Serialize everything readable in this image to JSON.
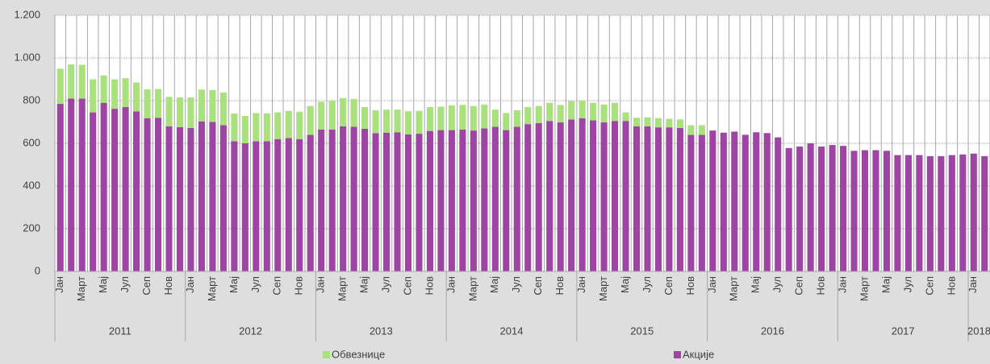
{
  "chart_data": {
    "type": "bar",
    "stacked": true,
    "categories": [
      "Јан",
      null,
      "Март",
      null,
      "Мај",
      null,
      "Јул",
      null,
      "Сеп",
      null,
      "Нов",
      null,
      "Јан",
      null,
      "Март",
      null,
      "Мај",
      null,
      "Јул",
      null,
      "Сеп",
      null,
      "Нов",
      null,
      "Јан",
      null,
      "Март",
      null,
      "Мај",
      null,
      "Јул",
      null,
      "Сеп",
      null,
      "Нов",
      null,
      "Јан",
      null,
      "Март",
      null,
      "Мај",
      null,
      "Јул",
      null,
      "Сеп",
      null,
      "Нов",
      null,
      "Јан",
      null,
      "Март",
      null,
      "Мај",
      null,
      "Јул",
      null,
      "Сеп",
      null,
      "Нов",
      null,
      "Јан",
      null,
      "Март",
      null,
      "Мај",
      null,
      "Јул",
      null,
      "Сеп",
      null,
      "Нов",
      null,
      "Јан",
      null,
      "Март",
      null,
      "Мај",
      null,
      "Јул",
      null,
      "Сеп",
      null,
      "Нов",
      null,
      "Јан",
      null
    ],
    "years": [
      "2011",
      "2012",
      "2013",
      "2014",
      "2015",
      "2016",
      "2017",
      "2018"
    ],
    "series": [
      {
        "name": "Акције",
        "color": "#9e44a3",
        "values": [
          785,
          810,
          810,
          745,
          790,
          762,
          770,
          750,
          718,
          720,
          680,
          676,
          672,
          703,
          700,
          685,
          610,
          600,
          610,
          610,
          620,
          625,
          620,
          640,
          665,
          665,
          680,
          678,
          668,
          648,
          650,
          652,
          642,
          645,
          658,
          662,
          662,
          665,
          660,
          670,
          678,
          662,
          678,
          690,
          695,
          705,
          698,
          712,
          718,
          708,
          698,
          705,
          705,
          680,
          680,
          675,
          675,
          672,
          640,
          640,
          660,
          650,
          655,
          640,
          652,
          648,
          628,
          578,
          585,
          600,
          585,
          592,
          588,
          565,
          568,
          568,
          565,
          545,
          545,
          545,
          540,
          540,
          545,
          548,
          552,
          540
        ]
      },
      {
        "name": "Обвезнице",
        "color": "#a9e27c",
        "values": [
          165,
          160,
          158,
          155,
          128,
          138,
          135,
          135,
          135,
          135,
          138,
          139,
          143,
          149,
          150,
          153,
          130,
          128,
          132,
          130,
          125,
          127,
          128,
          135,
          130,
          135,
          132,
          130,
          102,
          107,
          108,
          106,
          108,
          107,
          112,
          110,
          116,
          115,
          115,
          112,
          80,
          80,
          77,
          80,
          80,
          85,
          82,
          86,
          82,
          82,
          84,
          85,
          40,
          40,
          42,
          43,
          40,
          40,
          45,
          45,
          0,
          0,
          0,
          0,
          0,
          0,
          0,
          0,
          0,
          0,
          0,
          0,
          0,
          0,
          0,
          0,
          0,
          0,
          0,
          0,
          0,
          0,
          0,
          0,
          0,
          0
        ]
      }
    ],
    "ylim": [
      0,
      1200
    ],
    "yticks": [
      0,
      200,
      400,
      600,
      800,
      {
        "value": 1000,
        "label": "1.000"
      },
      {
        "value": 1200,
        "label": "1.200"
      }
    ],
    "grid": true
  }
}
